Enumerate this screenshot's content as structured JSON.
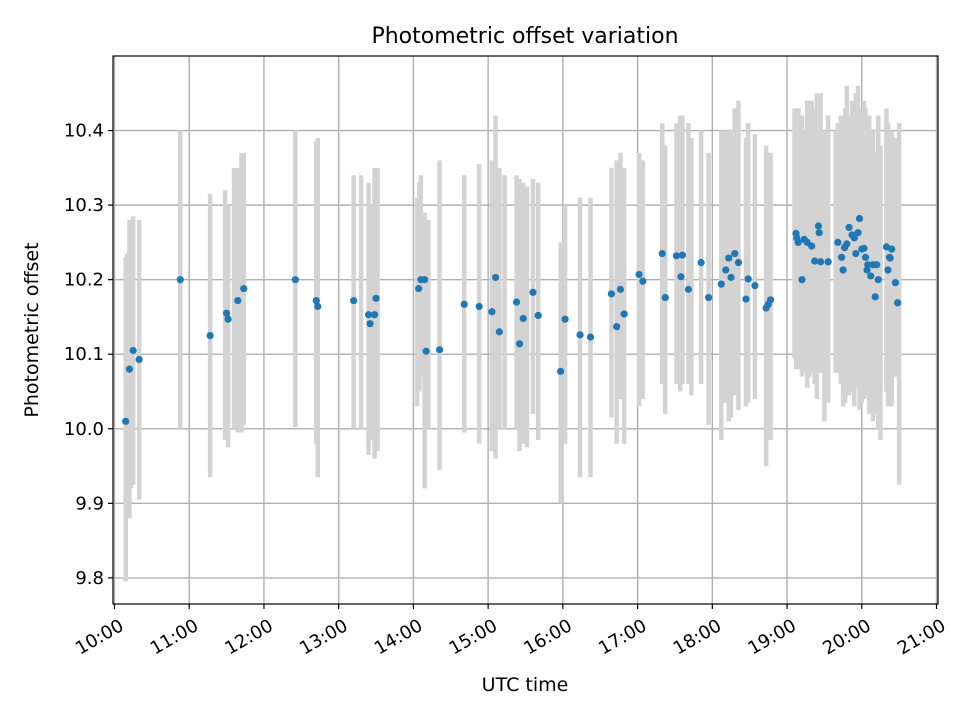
{
  "chart_data": {
    "type": "scatter",
    "title": "Photometric offset variation",
    "xlabel": "UTC time",
    "ylabel": "Photometric offset",
    "grid": true,
    "xlim": [
      9.98,
      21.02
    ],
    "ylim": [
      9.765,
      10.5
    ],
    "xticks": [
      10,
      11,
      12,
      13,
      14,
      15,
      16,
      17,
      18,
      19,
      20,
      21
    ],
    "xtick_labels": [
      "10:00",
      "11:00",
      "12:00",
      "13:00",
      "14:00",
      "15:00",
      "16:00",
      "17:00",
      "18:00",
      "19:00",
      "20:00",
      "21:00"
    ],
    "yticks": [
      9.8,
      9.9,
      10.0,
      10.1,
      10.2,
      10.3,
      10.4
    ],
    "ytick_labels": [
      "9.8",
      "9.9",
      "10.0",
      "10.1",
      "10.2",
      "10.3",
      "10.4"
    ],
    "colors": {
      "points": "#1f77b4",
      "errorbars": "#d3d3d3",
      "grid": "#b0b0b0"
    },
    "points_x_utc_hours": [
      10.15,
      10.2,
      10.25,
      10.33,
      10.88,
      11.28,
      11.5,
      11.52,
      11.65,
      11.73,
      12.42,
      12.7,
      12.72,
      13.2,
      13.4,
      13.42,
      13.48,
      13.5,
      14.07,
      14.1,
      14.15,
      14.17,
      14.35,
      14.68,
      14.88,
      15.05,
      15.1,
      15.15,
      15.38,
      15.42,
      15.47,
      15.6,
      15.67,
      15.97,
      16.03,
      16.23,
      16.37,
      16.65,
      16.72,
      16.77,
      16.82,
      17.02,
      17.07,
      17.33,
      17.37,
      17.52,
      17.58,
      17.6,
      17.68,
      17.85,
      17.95,
      18.12,
      18.18,
      18.22,
      18.25,
      18.3,
      18.35,
      18.45,
      18.48,
      18.57,
      18.72,
      18.75,
      18.78,
      19.12,
      19.13,
      19.15,
      19.2,
      19.23,
      19.27,
      19.33,
      19.37,
      19.42,
      19.43,
      19.45,
      19.55,
      19.68,
      19.73,
      19.75,
      19.77,
      19.8,
      19.83,
      19.87,
      19.9,
      19.92,
      19.95,
      19.97,
      20.0,
      20.03,
      20.05,
      20.07,
      20.08,
      20.12,
      20.15,
      20.18,
      20.2,
      20.22,
      20.33,
      20.35,
      20.37,
      20.38,
      20.4,
      20.45,
      20.48
    ],
    "points_y": [
      10.01,
      10.08,
      10.105,
      10.093,
      10.2,
      10.125,
      10.155,
      10.147,
      10.172,
      10.188,
      10.2,
      10.172,
      10.164,
      10.172,
      10.153,
      10.141,
      10.153,
      10.175,
      10.188,
      10.2,
      10.2,
      10.104,
      10.106,
      10.167,
      10.164,
      10.157,
      10.203,
      10.13,
      10.17,
      10.114,
      10.148,
      10.183,
      10.152,
      10.077,
      10.147,
      10.126,
      10.123,
      10.181,
      10.137,
      10.187,
      10.154,
      10.207,
      10.198,
      10.235,
      10.176,
      10.232,
      10.204,
      10.233,
      10.187,
      10.223,
      10.176,
      10.194,
      10.213,
      10.229,
      10.203,
      10.235,
      10.223,
      10.174,
      10.201,
      10.192,
      10.162,
      10.167,
      10.173,
      10.262,
      10.256,
      10.25,
      10.2,
      10.254,
      10.25,
      10.245,
      10.225,
      10.272,
      10.263,
      10.224,
      10.224,
      10.25,
      10.23,
      10.213,
      10.243,
      10.248,
      10.27,
      10.26,
      10.256,
      10.235,
      10.263,
      10.282,
      10.241,
      10.242,
      10.23,
      10.213,
      10.22,
      10.205,
      10.22,
      10.177,
      10.22,
      10.2,
      10.244,
      10.213,
      10.23,
      10.229,
      10.241,
      10.196,
      10.169
    ],
    "errorbar_x_utc_hours": [
      10.15,
      10.17,
      10.2,
      10.22,
      10.25,
      10.33,
      10.88,
      11.28,
      11.48,
      11.52,
      11.6,
      11.65,
      11.7,
      11.73,
      12.42,
      12.7,
      12.72,
      13.2,
      13.3,
      13.4,
      13.43,
      13.48,
      13.52,
      14.05,
      14.08,
      14.1,
      14.15,
      14.2,
      14.35,
      14.68,
      14.88,
      15.05,
      15.1,
      15.15,
      15.22,
      15.38,
      15.42,
      15.47,
      15.52,
      15.6,
      15.67,
      15.97,
      16.03,
      16.23,
      16.37,
      16.65,
      16.72,
      16.77,
      16.82,
      17.02,
      17.07,
      17.33,
      17.37,
      17.52,
      17.57,
      17.6,
      17.68,
      17.72,
      17.85,
      17.95,
      18.12,
      18.15,
      18.18,
      18.22,
      18.25,
      18.3,
      18.35,
      18.45,
      18.48,
      18.57,
      18.72,
      18.75,
      18.78,
      19.1,
      19.12,
      19.15,
      19.18,
      19.2,
      19.23,
      19.27,
      19.3,
      19.33,
      19.37,
      19.4,
      19.43,
      19.45,
      19.5,
      19.55,
      19.65,
      19.68,
      19.72,
      19.75,
      19.78,
      19.8,
      19.83,
      19.87,
      19.9,
      19.92,
      19.95,
      19.97,
      20.0,
      20.03,
      20.05,
      20.07,
      20.1,
      20.12,
      20.15,
      20.2,
      20.22,
      20.25,
      20.33,
      20.35,
      20.38,
      20.4,
      20.45,
      20.5
    ],
    "errorbar_low": [
      9.795,
      9.93,
      9.88,
      9.92,
      9.925,
      9.905,
      10.0,
      9.935,
      9.985,
      9.975,
      10.0,
      9.995,
      9.995,
      10.005,
      10.002,
      9.98,
      9.935,
      10.0,
      10.0,
      9.965,
      9.985,
      9.96,
      9.97,
      10.03,
      10.05,
      10.07,
      9.92,
      10.0,
      9.945,
      9.995,
      9.98,
      9.97,
      9.96,
      10.0,
      10.0,
      10.0,
      9.97,
      9.98,
      9.975,
      10.02,
      9.985,
      9.9,
      9.98,
      9.935,
      9.935,
      10.015,
      9.98,
      10.04,
      9.98,
      10.03,
      10.04,
      10.06,
      10.02,
      10.06,
      10.05,
      10.06,
      10.06,
      10.045,
      10.06,
      10.005,
      9.985,
      10.04,
      10.035,
      10.01,
      10.015,
      10.045,
      10.025,
      10.03,
      10.035,
      10.04,
      9.95,
      9.985,
      9.985,
      10.095,
      10.08,
      10.095,
      10.08,
      10.07,
      10.075,
      10.055,
      10.07,
      10.075,
      10.06,
      10.04,
      10.075,
      10.075,
      10.01,
      10.035,
      10.075,
      10.075,
      10.06,
      10.03,
      10.035,
      10.05,
      10.045,
      10.05,
      10.03,
      10.08,
      10.055,
      10.025,
      10.035,
      10.04,
      10.045,
      10.05,
      10.02,
      10.06,
      10.01,
      10.02,
      10.0,
      9.985,
      10.05,
      10.03,
      10.04,
      10.03,
      10.07,
      9.925
    ],
    "errorbar_high": [
      10.23,
      10.235,
      10.28,
      10.245,
      10.285,
      10.28,
      10.4,
      10.315,
      10.32,
      10.3,
      10.35,
      10.35,
      10.37,
      10.37,
      10.4,
      10.385,
      10.39,
      10.34,
      10.34,
      10.33,
      10.3,
      10.35,
      10.35,
      10.31,
      10.33,
      10.34,
      10.29,
      10.28,
      10.36,
      10.34,
      10.355,
      10.36,
      10.42,
      10.35,
      10.34,
      10.34,
      10.335,
      10.33,
      10.325,
      10.335,
      10.33,
      10.25,
      10.3,
      10.31,
      10.31,
      10.35,
      10.36,
      10.37,
      10.35,
      10.37,
      10.36,
      10.41,
      10.38,
      10.41,
      10.42,
      10.42,
      10.41,
      10.39,
      10.4,
      10.37,
      10.4,
      10.38,
      10.4,
      10.4,
      10.4,
      10.43,
      10.44,
      10.39,
      10.41,
      10.395,
      10.38,
      10.37,
      10.37,
      10.43,
      10.4,
      10.43,
      10.39,
      10.42,
      10.4,
      10.44,
      10.38,
      10.44,
      10.43,
      10.45,
      10.43,
      10.45,
      10.4,
      10.42,
      10.4,
      10.41,
      10.42,
      10.42,
      10.43,
      10.46,
      10.42,
      10.44,
      10.43,
      10.45,
      10.46,
      10.43,
      10.42,
      10.44,
      10.43,
      10.42,
      10.42,
      10.39,
      10.4,
      10.37,
      10.42,
      10.38,
      10.43,
      10.41,
      10.39,
      10.4,
      10.39,
      10.41
    ]
  }
}
